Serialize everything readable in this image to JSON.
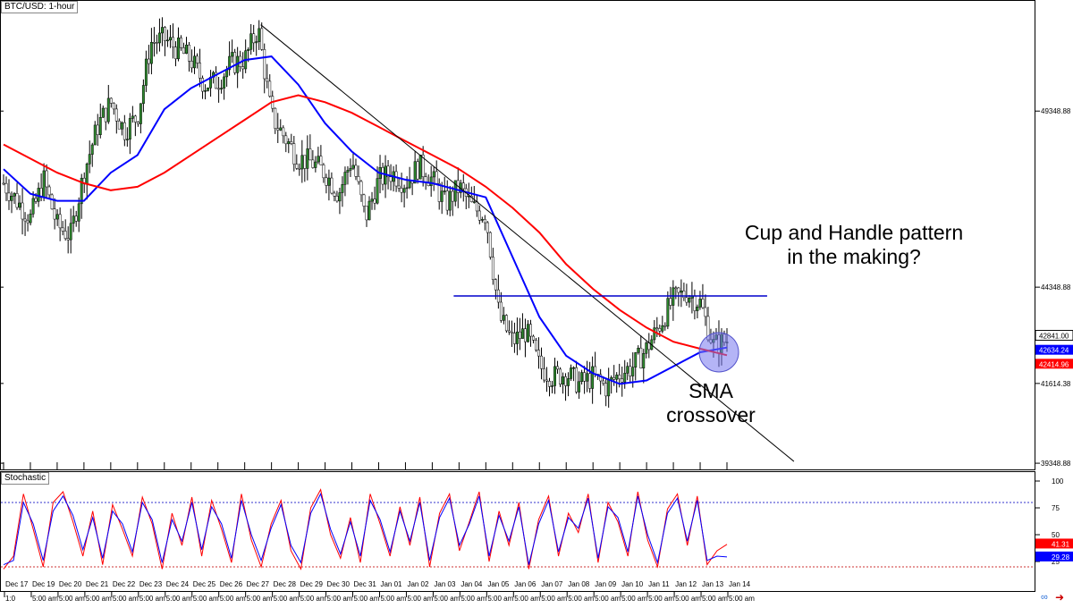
{
  "chart_data": [
    {
      "type": "candlestick",
      "title": "BTC/USD: 1-hour",
      "y_ticks": [
        {
          "value": 49348.88,
          "label": "49348.88"
        },
        {
          "value": 44348.88,
          "label": "44348.88"
        },
        {
          "value": 41614.38,
          "label": "41614.38"
        },
        {
          "value": 39348.88,
          "label": "39348.88"
        }
      ],
      "ylim": [
        39300,
        52300
      ],
      "price_tags": [
        {
          "value": 42841.0,
          "label": "42841.00",
          "color": "#000000"
        },
        {
          "value": 42634.24,
          "label": "42634.24",
          "color": "#0000ff"
        },
        {
          "value": 42414.96,
          "label": "42414.96",
          "color": "#ff0000"
        }
      ],
      "x_tick_labels": [
        "Dec 17",
        "Dec 19",
        "Dec 20",
        "Dec 21",
        "Dec 22",
        "Dec 23",
        "Dec 24",
        "Dec 25",
        "Dec 26",
        "Dec 27",
        "Dec 28",
        "Dec 29",
        "Dec 30",
        "Dec 31",
        "Jan 01",
        "Jan 02",
        "Jan 03",
        "Jan 04",
        "Jan 05",
        "Jan 06",
        "Jan 07",
        "Jan 08",
        "Jan 09",
        "Jan 10",
        "Jan 11",
        "Jan 12",
        "Jan 13",
        "Jan 14"
      ],
      "x_tick_values": [
        0,
        1,
        2,
        3,
        4,
        5,
        6,
        7,
        8,
        9,
        10,
        11,
        12,
        13,
        14,
        15,
        16,
        17,
        18,
        19,
        20,
        21,
        22,
        23,
        24,
        25,
        26,
        27
      ],
      "price_path": [
        [
          0,
          47300
        ],
        [
          0.5,
          46800
        ],
        [
          1,
          46300
        ],
        [
          1.5,
          47400
        ],
        [
          2,
          46100
        ],
        [
          2.5,
          45800
        ],
        [
          3,
          47600
        ],
        [
          3.5,
          48900
        ],
        [
          4,
          49600
        ],
        [
          4.5,
          48800
        ],
        [
          5,
          49200
        ],
        [
          5.5,
          51300
        ],
        [
          6,
          51400
        ],
        [
          6.5,
          51100
        ],
        [
          7,
          50800
        ],
        [
          7.5,
          50100
        ],
        [
          8,
          50200
        ],
        [
          8.5,
          50700
        ],
        [
          9,
          50800
        ],
        [
          9.5,
          51700
        ],
        [
          10,
          49200
        ],
        [
          10.5,
          48600
        ],
        [
          11,
          48000
        ],
        [
          11.5,
          47900
        ],
        [
          12,
          47600
        ],
        [
          12.5,
          47000
        ],
        [
          13,
          48000
        ],
        [
          13.5,
          46300
        ],
        [
          14,
          47400
        ],
        [
          14.5,
          47600
        ],
        [
          15,
          47300
        ],
        [
          15.5,
          47800
        ],
        [
          16,
          47400
        ],
        [
          16.5,
          46700
        ],
        [
          17,
          47200
        ],
        [
          17.5,
          46600
        ],
        [
          18,
          46400
        ],
        [
          18.5,
          43500
        ],
        [
          19,
          42800
        ],
        [
          19.5,
          43100
        ],
        [
          20,
          42100
        ],
        [
          20.5,
          41800
        ],
        [
          21,
          41900
        ],
        [
          21.5,
          41600
        ],
        [
          22,
          41800
        ],
        [
          22.5,
          41500
        ],
        [
          23,
          41900
        ],
        [
          23.5,
          42100
        ],
        [
          24,
          42600
        ],
        [
          24.5,
          43300
        ],
        [
          25,
          44000
        ],
        [
          25.5,
          44200
        ],
        [
          26,
          43900
        ],
        [
          26.5,
          42700
        ],
        [
          27,
          42841
        ]
      ],
      "series": [
        {
          "name": "",
          "color": "#0000ff",
          "values": [
            [
              0,
              47700
            ],
            [
              1,
              47000
            ],
            [
              2,
              46800
            ],
            [
              3,
              46800
            ],
            [
              4,
              47600
            ],
            [
              5,
              48100
            ],
            [
              6,
              49400
            ],
            [
              7,
              50000
            ],
            [
              8,
              50400
            ],
            [
              9,
              50800
            ],
            [
              10,
              50900
            ],
            [
              11,
              50100
            ],
            [
              12,
              49000
            ],
            [
              13,
              48200
            ],
            [
              14,
              47600
            ],
            [
              15,
              47400
            ],
            [
              16,
              47300
            ],
            [
              17,
              47100
            ],
            [
              18,
              46900
            ],
            [
              19,
              45200
            ],
            [
              20,
              43500
            ],
            [
              21,
              42400
            ],
            [
              22,
              41900
            ],
            [
              23,
              41600
            ],
            [
              24,
              41700
            ],
            [
              25,
              42100
            ],
            [
              26,
              42500
            ],
            [
              27,
              42634.24
            ]
          ]
        },
        {
          "name": "",
          "color": "#ff0000",
          "values": [
            [
              0,
              48400
            ],
            [
              1,
              48000
            ],
            [
              2,
              47600
            ],
            [
              3,
              47300
            ],
            [
              4,
              47100
            ],
            [
              5,
              47200
            ],
            [
              6,
              47600
            ],
            [
              7,
              48100
            ],
            [
              8,
              48600
            ],
            [
              9,
              49100
            ],
            [
              10,
              49600
            ],
            [
              11,
              49800
            ],
            [
              12,
              49600
            ],
            [
              13,
              49300
            ],
            [
              14,
              48900
            ],
            [
              15,
              48500
            ],
            [
              16,
              48100
            ],
            [
              17,
              47700
            ],
            [
              18,
              47200
            ],
            [
              19,
              46600
            ],
            [
              20,
              45900
            ],
            [
              21,
              45000
            ],
            [
              22,
              44300
            ],
            [
              23,
              43700
            ],
            [
              24,
              43200
            ],
            [
              25,
              42800
            ],
            [
              26,
              42600
            ],
            [
              27,
              42414.96
            ]
          ]
        }
      ],
      "annotations": {
        "trendline": {
          "from": [
            9.6,
            51800
          ],
          "to": [
            29.5,
            39400
          ],
          "color": "#000000"
        },
        "resistance": {
          "from": [
            16.8,
            44100
          ],
          "to": [
            28.5,
            44100
          ],
          "color": "#0000cc"
        },
        "circle": {
          "center": [
            26.7,
            42500
          ],
          "color": "#7777ee"
        },
        "pattern_text": [
          "Cup and Handle pattern",
          "in the making?"
        ],
        "crossover_text": [
          "SMA",
          "crossover"
        ]
      }
    },
    {
      "type": "line",
      "title": "Stochastic",
      "y_ticks": [
        {
          "value": 100,
          "label": "100"
        },
        {
          "value": 75,
          "label": "75"
        },
        {
          "value": 50,
          "label": "50"
        },
        {
          "value": 25,
          "label": "25"
        }
      ],
      "ylim": [
        0,
        105
      ],
      "levels": [
        80,
        20
      ],
      "price_tags": [
        {
          "value": 41.31,
          "label": "41.31",
          "color": "#ff0000"
        },
        {
          "value": 29.28,
          "label": "29.28",
          "color": "#0000ff"
        }
      ],
      "x_tick_labels": [
        "1:0",
        "5:00 am",
        "5:00 am",
        "5:00 am",
        "5:00 am",
        "5:00 am",
        "5:00 am",
        "5:00 am",
        "5:00 am",
        "5:00 am",
        "5:00 am",
        "5:00 am",
        "5:00 am",
        "5:00 am",
        "5:00 am",
        "5:00 am",
        "5:00 am",
        "5:00 am",
        "5:00 am",
        "5:00 am",
        "5:00 am",
        "5:00 am",
        "5:00 am",
        "5:00 am",
        "5:00 am",
        "5:00 am",
        "5:00 am",
        "5:00 am"
      ],
      "series": [
        {
          "name": "",
          "color": "#ff0000",
          "values": [
            18,
            30,
            88,
            55,
            20,
            80,
            90,
            62,
            30,
            72,
            22,
            78,
            55,
            30,
            85,
            60,
            18,
            70,
            40,
            85,
            30,
            82,
            55,
            24,
            88,
            45,
            20,
            60,
            82,
            35,
            18,
            75,
            92,
            50,
            28,
            66,
            24,
            88,
            60,
            30,
            76,
            40,
            85,
            20,
            70,
            88,
            35,
            62,
            90,
            25,
            72,
            40,
            80,
            18,
            64,
            86,
            30,
            70,
            52,
            88,
            24,
            80,
            62,
            30,
            90,
            45,
            20,
            74,
            88,
            40,
            86,
            22,
            35,
            41
          ]
        },
        {
          "name": "",
          "color": "#0000ff",
          "values": [
            22,
            26,
            80,
            60,
            26,
            72,
            86,
            68,
            36,
            66,
            28,
            72,
            60,
            34,
            80,
            64,
            24,
            64,
            44,
            80,
            36,
            76,
            60,
            28,
            82,
            50,
            26,
            56,
            78,
            40,
            24,
            70,
            88,
            55,
            32,
            62,
            30,
            82,
            64,
            34,
            72,
            44,
            80,
            26,
            66,
            84,
            40,
            60,
            86,
            30,
            68,
            44,
            76,
            22,
            60,
            82,
            34,
            66,
            56,
            84,
            28,
            76,
            66,
            34,
            86,
            50,
            24,
            70,
            84,
            44,
            82,
            26,
            30,
            29.28
          ]
        }
      ]
    }
  ]
}
